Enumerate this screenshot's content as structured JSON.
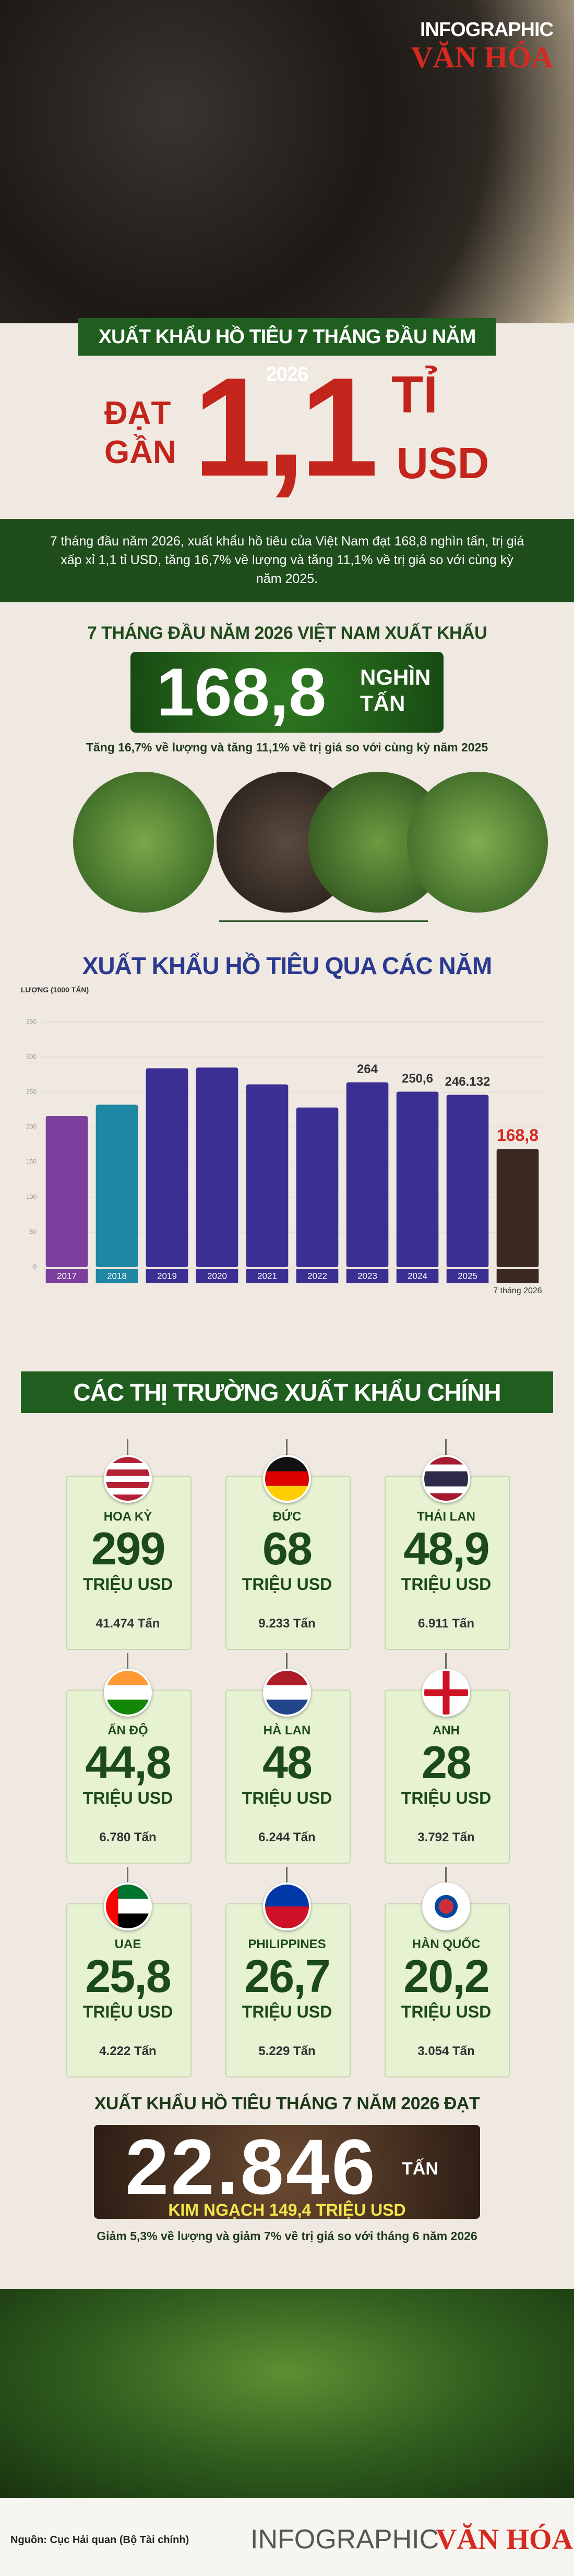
{
  "header": {
    "logo_top": "INFOGRAPHIC",
    "logo_bottom": "VĂN HÓA",
    "banner": "XUẤT KHẨU HỒ TIÊU 7 THÁNG ĐẦU NĂM 2026",
    "reach_1": "ĐẠT",
    "reach_2": "GẦN",
    "big_number": "1,1",
    "unit_1": "TỈ",
    "unit_2": "USD"
  },
  "intro": "7 tháng đầu năm 2026, xuất khẩu hồ tiêu của Việt Nam đạt 168,8 nghìn tấn, trị giá xấp xỉ 1,1 tỉ USD, tăng 16,7% về lượng và tăng 11,1% về trị giá so với cùng kỳ năm 2025.",
  "volume": {
    "heading": "7 THÁNG ĐẦU NĂM 2026 VIỆT NAM XUẤT KHẨU",
    "number": "168,8",
    "unit_1": "NGHÌN",
    "unit_2": "TẤN",
    "note": "Tăng 16,7% về lượng và tăng 11,1% về trị giá so với cùng kỳ năm 2025"
  },
  "chart_data": {
    "type": "bar",
    "title": "XUẤT KHẨU HỒ TIÊU QUA CÁC NĂM",
    "y_label": "LƯỢNG (1000 TẤN)",
    "categories": [
      "2017",
      "2018",
      "2019",
      "2020",
      "2021",
      "2022",
      "2023",
      "2024",
      "2025",
      "7 tháng 2026"
    ],
    "values": [
      216,
      232,
      284,
      285,
      261,
      228,
      264,
      250.6,
      246.132,
      168.8
    ],
    "value_labels": [
      null,
      null,
      null,
      null,
      null,
      null,
      "264",
      "250,6",
      "246.132",
      "168,8"
    ],
    "colors": [
      "#7c3f9e",
      "#1f86a3",
      "#3c2f93",
      "#3c2f93",
      "#3c2f93",
      "#3c2f93",
      "#3c2f93",
      "#3c2f93",
      "#3c2f93",
      "#3a2a22"
    ],
    "ylim": [
      0,
      350
    ],
    "yticks": [
      0,
      50,
      100,
      150,
      200,
      250,
      300,
      350
    ],
    "grid": true
  },
  "markets": {
    "heading": "CÁC THỊ TRƯỜNG XUẤT KHẨU CHÍNH",
    "items": [
      {
        "name": "HOA KỲ",
        "value": "299",
        "unit": "TRIỆU USD",
        "volume": "41.474 Tấn"
      },
      {
        "name": "ĐỨC",
        "value": "68",
        "unit": "TRIỆU USD",
        "volume": "9.233 Tấn"
      },
      {
        "name": "THÁI LAN",
        "value": "48,9",
        "unit": "TRIỆU USD",
        "volume": "6.911 Tấn"
      },
      {
        "name": "ẤN ĐỘ",
        "value": "44,8",
        "unit": "TRIỆU USD",
        "volume": "6.780 Tấn"
      },
      {
        "name": "HÀ LAN",
        "value": "48",
        "unit": "TRIỆU USD",
        "volume": "6.244 Tấn"
      },
      {
        "name": "ANH",
        "value": "28",
        "unit": "TRIỆU USD",
        "volume": "3.792 Tấn"
      },
      {
        "name": "UAE",
        "value": "25,8",
        "unit": "TRIỆU USD",
        "volume": "4.222 Tấn"
      },
      {
        "name": "PHILIPPINES",
        "value": "26,7",
        "unit": "TRIỆU USD",
        "volume": "5.229 Tấn"
      },
      {
        "name": "HÀN QUỐC",
        "value": "20,2",
        "unit": "TRIỆU USD",
        "volume": "3.054 Tấn"
      }
    ]
  },
  "july": {
    "heading": "XUẤT KHẨU HỒ TIÊU THÁNG 7 NĂM 2026 ĐẠT",
    "number": "22.846",
    "unit": "TẤN",
    "turnover": "KIM NGẠCH 149,4 TRIỆU USD",
    "note": "Giảm 5,3% về lượng và giảm 7% về trị giá so với tháng 6 năm 2026"
  },
  "footer": {
    "source": "Nguồn: Cục Hải quan (Bộ Tài chính)",
    "logo_left": "INFOGRAPHIC",
    "logo_right": "VĂN HÓA"
  }
}
